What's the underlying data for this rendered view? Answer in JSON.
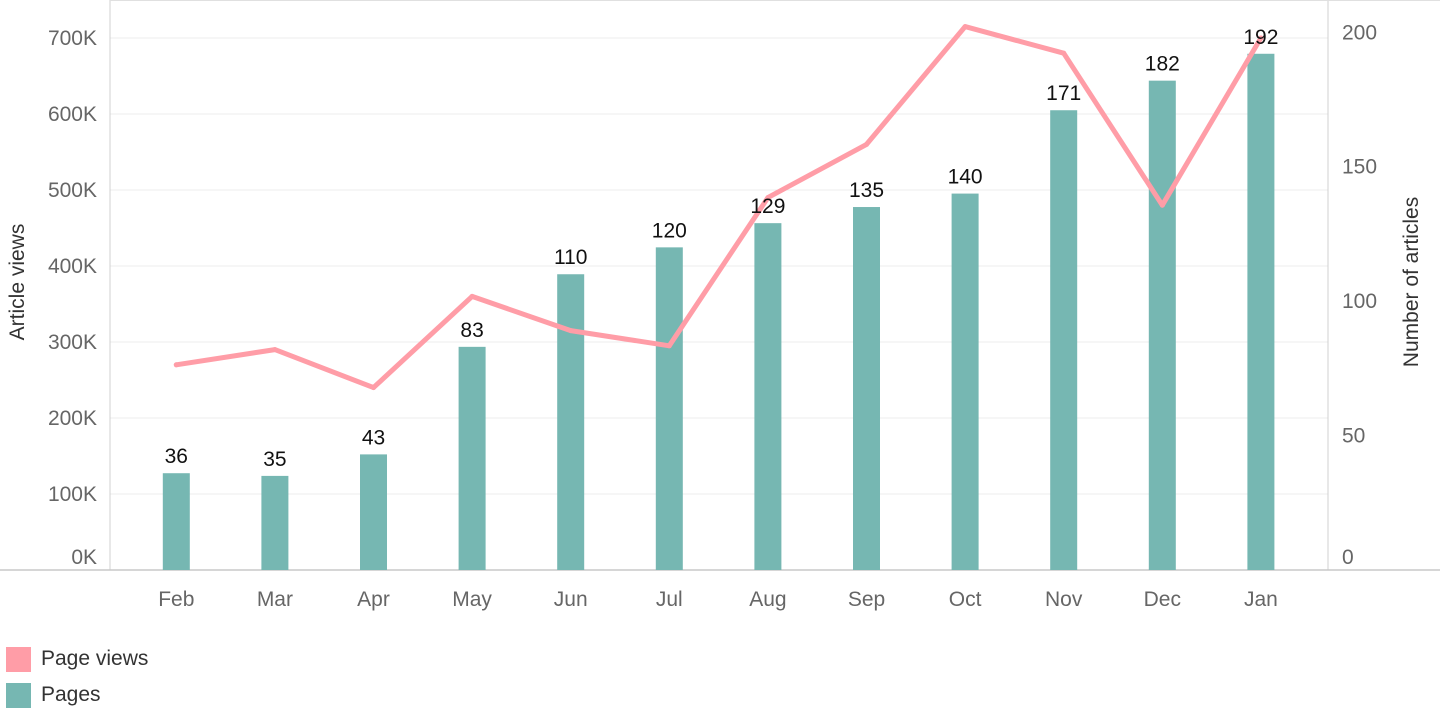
{
  "chart_data": {
    "type": "bar",
    "title": "",
    "categories": [
      "Feb",
      "Mar",
      "Apr",
      "May",
      "Jun",
      "Jul",
      "Aug",
      "Sep",
      "Oct",
      "Nov",
      "Dec",
      "Jan"
    ],
    "series": [
      {
        "name": "Pages",
        "type": "bar",
        "axis": "right",
        "color": "#76b7b2",
        "values": [
          36,
          35,
          43,
          83,
          110,
          120,
          129,
          135,
          140,
          171,
          182,
          192
        ]
      },
      {
        "name": "Page views",
        "type": "line",
        "axis": "left",
        "color": "#ff9da7",
        "values": [
          270000,
          290000,
          240000,
          360000,
          315000,
          295000,
          490000,
          560000,
          715000,
          680000,
          480000,
          700000
        ]
      }
    ],
    "y_left": {
      "label": "Article views",
      "ticks": [
        0,
        100000,
        200000,
        300000,
        400000,
        500000,
        600000,
        700000
      ],
      "tick_labels": [
        "0K",
        "100K",
        "200K",
        "300K",
        "400K",
        "500K",
        "600K",
        "700K"
      ],
      "range": [
        0,
        750000
      ]
    },
    "y_right": {
      "label": "Number of articles",
      "ticks": [
        0,
        50,
        100,
        150,
        200
      ],
      "tick_labels": [
        "0",
        "50",
        "100",
        "150",
        "200"
      ],
      "range": [
        0,
        212
      ]
    },
    "grid": true,
    "legend_position": "bottom-left",
    "data_labels_on": "Pages"
  },
  "legend": {
    "items": [
      {
        "label": "Page views",
        "color": "#ff9da7"
      },
      {
        "label": "Pages",
        "color": "#76b7b2"
      }
    ]
  }
}
